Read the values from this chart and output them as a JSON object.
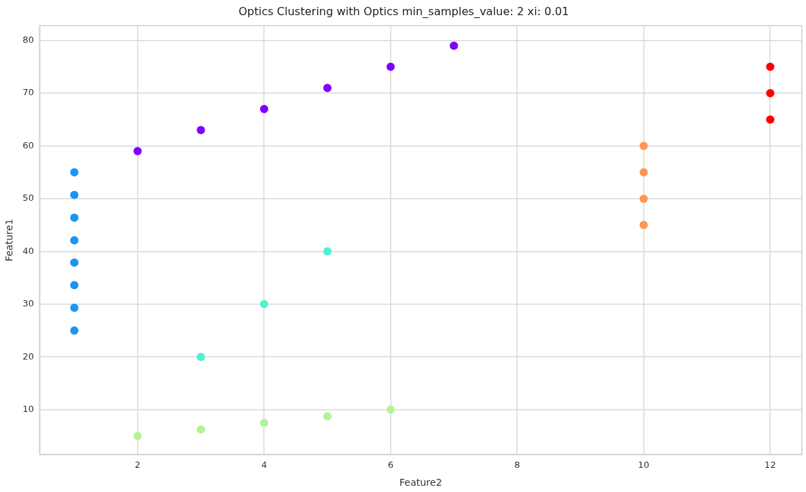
{
  "chart_data": {
    "type": "scatter",
    "title": "Optics Clustering with Optics min_samples_value: 2 xi: 0.01",
    "xlabel": "Feature2",
    "ylabel": "Feature1",
    "xlim": [
      0.45,
      12.5
    ],
    "xticks": [
      2,
      4,
      6,
      8,
      10,
      12
    ],
    "ylim": [
      1.5,
      82.8
    ],
    "yticks": [
      10,
      20,
      30,
      40,
      50,
      60,
      70,
      80
    ],
    "grid": true,
    "legend": false,
    "marker": "circle",
    "series": [
      {
        "color": "#1996f3",
        "x": [
          1,
          1,
          1,
          1,
          1,
          1,
          1,
          1
        ],
        "values": [
          55,
          50.7,
          46.4,
          42.1,
          37.9,
          33.6,
          29.3,
          25
        ]
      },
      {
        "color": "#8000ff",
        "x": [
          2,
          3,
          4,
          5,
          6,
          7
        ],
        "values": [
          59,
          63,
          67,
          71,
          75,
          79
        ]
      },
      {
        "color": "#4df3ce",
        "x": [
          3,
          4,
          5
        ],
        "values": [
          20,
          30,
          40
        ]
      },
      {
        "color": "#b2f396",
        "x": [
          2,
          3,
          4,
          5,
          6
        ],
        "values": [
          5,
          6.25,
          7.5,
          8.75,
          10
        ]
      },
      {
        "color": "#ff9652",
        "x": [
          10,
          10,
          10,
          10
        ],
        "values": [
          45,
          50,
          55,
          60
        ]
      },
      {
        "color": "#ff0000",
        "x": [
          12,
          12,
          12
        ],
        "values": [
          65,
          70,
          75
        ]
      }
    ]
  }
}
